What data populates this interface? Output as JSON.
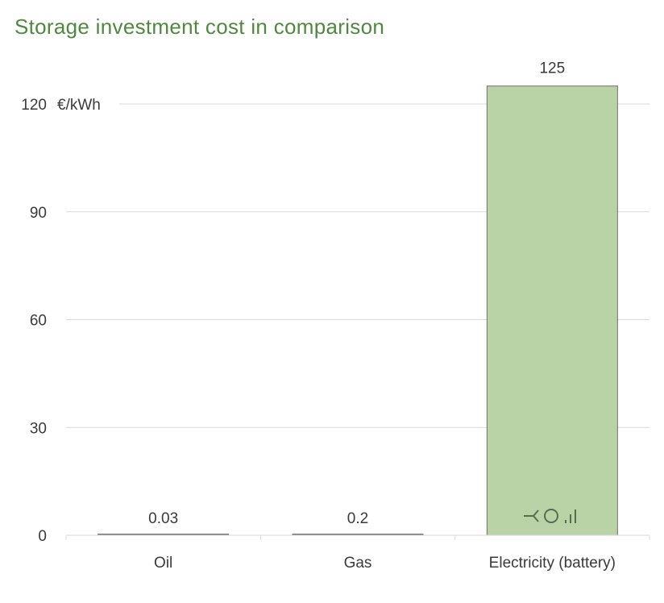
{
  "chart_data": {
    "type": "bar",
    "title": "Storage investment cost in comparison",
    "categories": [
      "Oil",
      "Gas",
      "Electricity (battery)"
    ],
    "values": [
      0.03,
      0.2,
      125
    ],
    "data_labels": [
      "0.03",
      "0.2",
      "125"
    ],
    "ylabel": "€/kWh",
    "ylim": [
      0,
      130
    ],
    "yticks": [
      0,
      30,
      60,
      90,
      120
    ],
    "grid": true,
    "colors": {
      "bar_highlight": "#b9d2a6",
      "bar_default": "#8c8c8c",
      "bar_border": "#6f6f6f",
      "grid": "#d9d9d9",
      "title": "#4e8a3e"
    }
  }
}
